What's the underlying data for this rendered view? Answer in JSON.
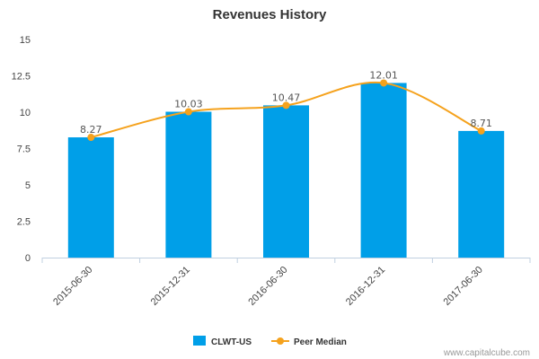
{
  "chart_data": {
    "type": "bar",
    "title": "Revenues History",
    "categories": [
      "2015-06-30",
      "2015-12-31",
      "2016-06-30",
      "2016-12-31",
      "2017-06-30"
    ],
    "series": [
      {
        "name": "CLWT-US",
        "type": "bar",
        "values": [
          8.27,
          10.03,
          10.47,
          12.01,
          8.71
        ],
        "color": "#009fe8"
      },
      {
        "name": "Peer Median",
        "type": "line",
        "values": [
          8.27,
          10.03,
          10.47,
          12.01,
          8.71
        ],
        "color": "#f5a21d"
      }
    ],
    "data_labels": [
      "8.27",
      "10.03",
      "10.47",
      "12.01",
      "8.71"
    ],
    "yticks": [
      "0",
      "2.5",
      "5",
      "7.5",
      "10",
      "12.5",
      "15"
    ],
    "ylim": [
      0,
      15
    ],
    "grid": false,
    "legend": "bottom-center",
    "xlabel": "",
    "ylabel": ""
  },
  "credit": "www.capitalcube.com",
  "colors": {
    "bar": "#009fe8",
    "line": "#f5a21d",
    "axis": "#c0d0e0",
    "text": "#333333"
  }
}
